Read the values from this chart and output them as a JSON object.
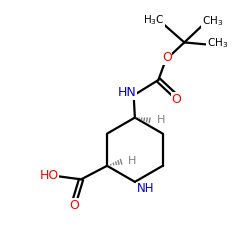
{
  "bg_color": "#ffffff",
  "bond_color": "#000000",
  "nitrogen_color": "#0000cc",
  "oxygen_color": "#ff0000",
  "gray_color": "#808080",
  "line_width": 1.6,
  "font_size_atoms": 8.5,
  "font_size_small": 7.0,
  "figsize": [
    2.5,
    2.5
  ],
  "dpi": 100,
  "xlim": [
    0,
    10
  ],
  "ylim": [
    0,
    10
  ]
}
